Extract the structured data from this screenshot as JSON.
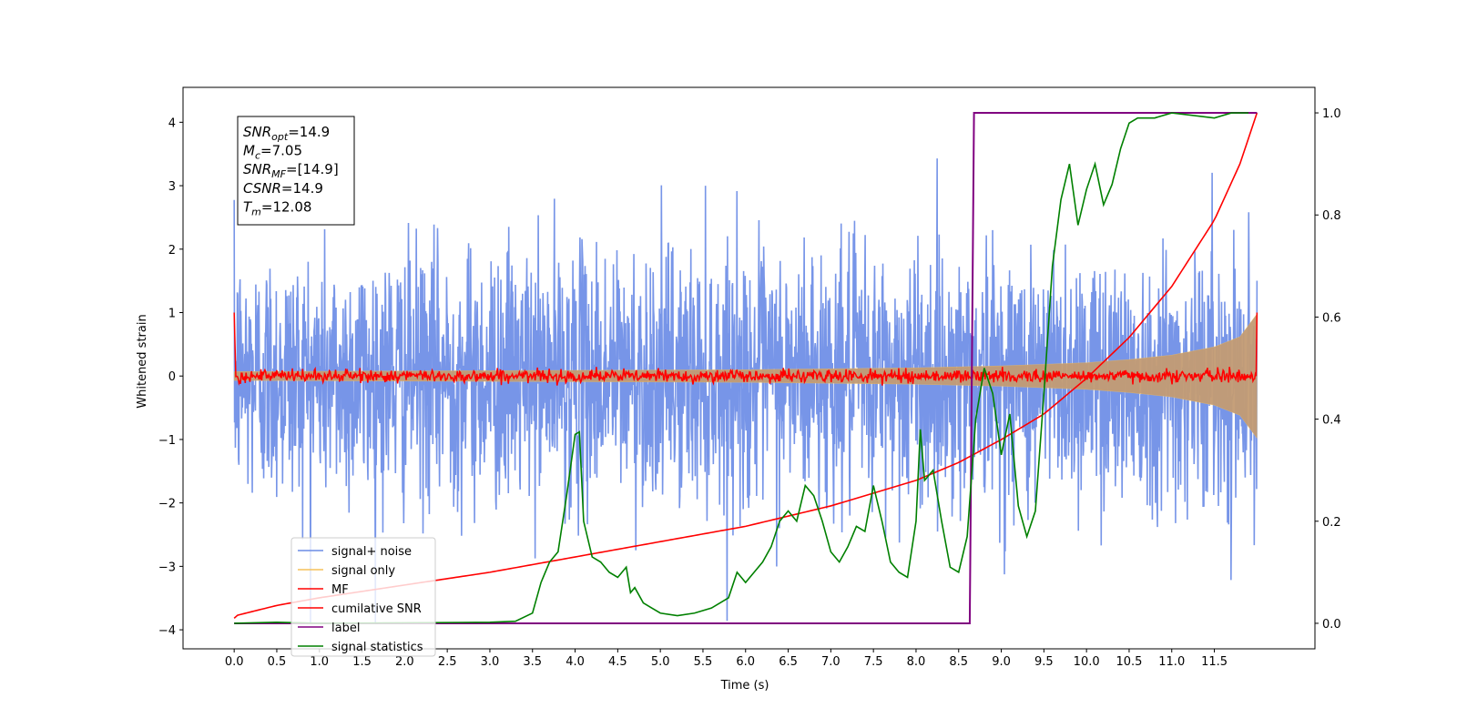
{
  "chart_data": {
    "type": "line",
    "title": "",
    "xlabel": "Time (s)",
    "ylabel": "Whitened strain",
    "xlim": [
      -0.6,
      12.68
    ],
    "ylim": [
      -4.3,
      4.55
    ],
    "ylim_right": [
      -0.05,
      1.05
    ],
    "x_ticks": [
      0.0,
      0.5,
      1.0,
      1.5,
      2.0,
      2.5,
      3.0,
      3.5,
      4.0,
      4.5,
      5.0,
      5.5,
      6.0,
      6.5,
      7.0,
      7.5,
      8.0,
      8.5,
      9.0,
      9.5,
      10.0,
      10.5,
      11.0,
      11.5
    ],
    "x_tick_labels": [
      "0.0",
      "0.5",
      "1.0",
      "1.5",
      "2.0",
      "2.5",
      "3.0",
      "3.5",
      "4.0",
      "4.5",
      "5.0",
      "5.5",
      "6.0",
      "6.5",
      "7.0",
      "7.5",
      "8.0",
      "8.5",
      "9.0",
      "9.5",
      "10.0",
      "10.5",
      "11.0",
      "11.5"
    ],
    "y_ticks": [
      -4,
      -3,
      -2,
      -1,
      0,
      1,
      2,
      3,
      4
    ],
    "y_tick_labels": [
      "−4",
      "−3",
      "−2",
      "−1",
      "0",
      "1",
      "2",
      "3",
      "4"
    ],
    "y_right_ticks": [
      0.0,
      0.2,
      0.4,
      0.6,
      0.8,
      1.0
    ],
    "y_right_tick_labels": [
      "0.0",
      "0.2",
      "0.4",
      "0.6",
      "0.8",
      "1.0"
    ],
    "grid": false,
    "legend_position": "lower-left",
    "annotation": [
      {
        "base": "SNR",
        "sub": "opt",
        "rest": "=14.9"
      },
      {
        "base": "M",
        "sub": "c",
        "rest": "=7.05"
      },
      {
        "base": "SNR",
        "sub": "MF",
        "rest": "=[14.9]"
      },
      {
        "base": "CSNR",
        "sub": "",
        "rest": "=14.9"
      },
      {
        "base": "T",
        "sub": "m",
        "rest": "=12.08"
      }
    ],
    "series": [
      {
        "name": "signal+ noise",
        "axis": "left",
        "color": "#6b8ce6",
        "description": "white noise, std approx 1.0, values mostly between -3.9 and 4.2",
        "noise_std": 1.0,
        "x_range": [
          0.0,
          12.0
        ]
      },
      {
        "name": "signal only",
        "axis": "left",
        "color": "#f5c15a",
        "envelope": {
          "x": [
            0.0,
            2.0,
            4.0,
            6.0,
            8.0,
            9.0,
            10.0,
            10.5,
            11.0,
            11.5,
            11.8,
            12.0
          ],
          "amp": [
            0.07,
            0.08,
            0.09,
            0.1,
            0.13,
            0.16,
            0.21,
            0.26,
            0.33,
            0.46,
            0.62,
            0.98
          ]
        }
      },
      {
        "name": "MF",
        "axis": "left",
        "color": "#ff0000",
        "description": "starts at 1.0 at t=0, then noise around 0 with std approx 0.05, ends at 1.0",
        "start_value": 1.0,
        "end_value": 1.0,
        "noise_std": 0.05
      },
      {
        "name": "cumilative SNR",
        "axis": "right",
        "color": "#ff0000",
        "x": [
          0.0,
          0.02,
          0.5,
          1.0,
          2.0,
          3.0,
          4.0,
          5.0,
          6.0,
          7.0,
          8.0,
          8.5,
          9.0,
          9.5,
          10.0,
          10.5,
          11.0,
          11.5,
          11.8,
          12.0
        ],
        "values": [
          0.01,
          0.015,
          0.035,
          0.05,
          0.075,
          0.1,
          0.13,
          0.16,
          0.19,
          0.23,
          0.28,
          0.315,
          0.36,
          0.41,
          0.48,
          0.56,
          0.66,
          0.79,
          0.9,
          1.0
        ]
      },
      {
        "name": "label",
        "axis": "right",
        "color": "#800080",
        "x": [
          0.0,
          8.63,
          8.68,
          12.0
        ],
        "values": [
          0.0,
          0.0,
          1.0,
          1.0
        ]
      },
      {
        "name": "signal statistics",
        "axis": "right",
        "color": "#008000",
        "x": [
          0.0,
          0.5,
          1.0,
          2.0,
          3.0,
          3.3,
          3.5,
          3.6,
          3.7,
          3.8,
          3.9,
          4.0,
          4.05,
          4.1,
          4.2,
          4.3,
          4.4,
          4.5,
          4.6,
          4.65,
          4.7,
          4.8,
          4.9,
          5.0,
          5.2,
          5.4,
          5.6,
          5.7,
          5.8,
          5.9,
          6.0,
          6.1,
          6.2,
          6.3,
          6.4,
          6.5,
          6.6,
          6.7,
          6.8,
          6.9,
          7.0,
          7.1,
          7.2,
          7.3,
          7.4,
          7.5,
          7.6,
          7.7,
          7.8,
          7.9,
          8.0,
          8.05,
          8.1,
          8.2,
          8.3,
          8.4,
          8.5,
          8.6,
          8.7,
          8.8,
          8.9,
          9.0,
          9.1,
          9.2,
          9.3,
          9.4,
          9.5,
          9.6,
          9.7,
          9.8,
          9.9,
          10.0,
          10.1,
          10.2,
          10.3,
          10.4,
          10.5,
          10.6,
          10.8,
          11.0,
          11.5,
          11.7,
          11.9
        ],
        "values": [
          0.0,
          0.002,
          0.0,
          0.001,
          0.002,
          0.004,
          0.02,
          0.08,
          0.12,
          0.14,
          0.25,
          0.37,
          0.375,
          0.2,
          0.13,
          0.12,
          0.1,
          0.09,
          0.11,
          0.06,
          0.07,
          0.04,
          0.03,
          0.02,
          0.015,
          0.02,
          0.03,
          0.04,
          0.05,
          0.1,
          0.08,
          0.1,
          0.12,
          0.15,
          0.2,
          0.22,
          0.2,
          0.27,
          0.25,
          0.2,
          0.14,
          0.12,
          0.15,
          0.19,
          0.18,
          0.27,
          0.2,
          0.12,
          0.1,
          0.09,
          0.2,
          0.38,
          0.28,
          0.3,
          0.2,
          0.11,
          0.1,
          0.17,
          0.4,
          0.5,
          0.45,
          0.33,
          0.41,
          0.23,
          0.17,
          0.22,
          0.45,
          0.7,
          0.83,
          0.9,
          0.78,
          0.85,
          0.9,
          0.82,
          0.86,
          0.93,
          0.98,
          0.99,
          0.99,
          1.0,
          0.99,
          1.0,
          1.0
        ]
      }
    ]
  }
}
